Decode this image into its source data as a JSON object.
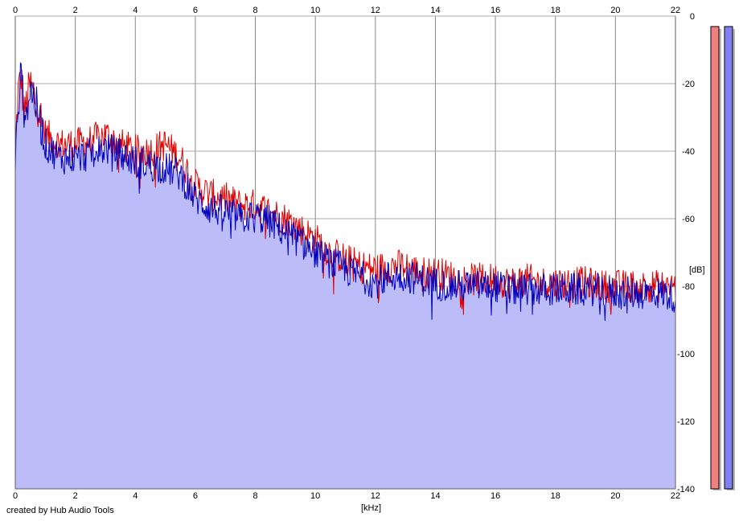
{
  "chart_data": {
    "type": "area",
    "xlabel": "[kHz]",
    "ylabel": "[dB]",
    "xlim": [
      0,
      22
    ],
    "ylim": [
      -140,
      0
    ],
    "x_ticks": [
      "0",
      "2",
      "4",
      "6",
      "8",
      "10",
      "12",
      "14",
      "16",
      "18",
      "20",
      "22"
    ],
    "y_ticks": [
      "0",
      "-20",
      "-40",
      "-60",
      "-80",
      "-100",
      "-120",
      "-140"
    ],
    "grid": true,
    "series": [
      {
        "color": "#e00000",
        "x": [
          0,
          0.1,
          0.2,
          0.3,
          0.4,
          0.5,
          0.6,
          0.8,
          1.0,
          1.5,
          2.0,
          2.5,
          3.0,
          3.5,
          4.0,
          4.5,
          5.0,
          5.5,
          6.0,
          6.5,
          7.0,
          7.5,
          8.0,
          8.5,
          9.0,
          9.5,
          10.0,
          10.5,
          11.0,
          11.5,
          12.0,
          12.5,
          13.0,
          13.5,
          14.0,
          14.5,
          15.0,
          15.5,
          16.0,
          16.5,
          17.0,
          17.5,
          18.0,
          18.5,
          19.0,
          19.5,
          20.0,
          20.5,
          21.0,
          21.5,
          22.0
        ],
        "values": [
          -40,
          -22,
          -18,
          -30,
          -24,
          -20,
          -23,
          -28,
          -35,
          -38,
          -38,
          -37,
          -35,
          -38,
          -40,
          -40,
          -38,
          -42,
          -50,
          -53,
          -54,
          -56,
          -56,
          -58,
          -60,
          -63,
          -66,
          -70,
          -72,
          -74,
          -75,
          -74,
          -74,
          -76,
          -76,
          -77,
          -78,
          -78,
          -78,
          -79,
          -78,
          -79,
          -79,
          -79,
          -79,
          -80,
          -80,
          -80,
          -80,
          -80,
          -80
        ]
      },
      {
        "color": "#0000c0",
        "fill": "#bcbcf8",
        "x": [
          0,
          0.1,
          0.2,
          0.3,
          0.4,
          0.5,
          0.6,
          0.8,
          1.0,
          1.5,
          2.0,
          2.5,
          3.0,
          3.5,
          4.0,
          4.5,
          5.0,
          5.5,
          6.0,
          6.5,
          7.0,
          7.5,
          8.0,
          8.5,
          9.0,
          9.5,
          10.0,
          10.5,
          11.0,
          11.5,
          12.0,
          12.5,
          13.0,
          13.5,
          14.0,
          14.5,
          15.0,
          15.5,
          16.0,
          16.5,
          17.0,
          17.5,
          18.0,
          18.5,
          19.0,
          19.5,
          20.0,
          20.5,
          21.0,
          21.5,
          22.0
        ],
        "values": [
          -45,
          -26,
          -17,
          -28,
          -27,
          -22,
          -23,
          -30,
          -38,
          -42,
          -42,
          -41,
          -39,
          -41,
          -43,
          -44,
          -45,
          -47,
          -54,
          -57,
          -58,
          -60,
          -59,
          -61,
          -64,
          -67,
          -70,
          -73,
          -75,
          -77,
          -79,
          -77,
          -77,
          -78,
          -79,
          -80,
          -80,
          -80,
          -80,
          -81,
          -81,
          -81,
          -81,
          -81,
          -81,
          -81,
          -82,
          -82,
          -82,
          -82,
          -83
        ]
      }
    ],
    "level_meters": [
      {
        "color": "#f08080",
        "level": 1.0
      },
      {
        "color": "#8080f0",
        "level": 1.0
      }
    ]
  },
  "credit": "created by Hub Audio Tools"
}
